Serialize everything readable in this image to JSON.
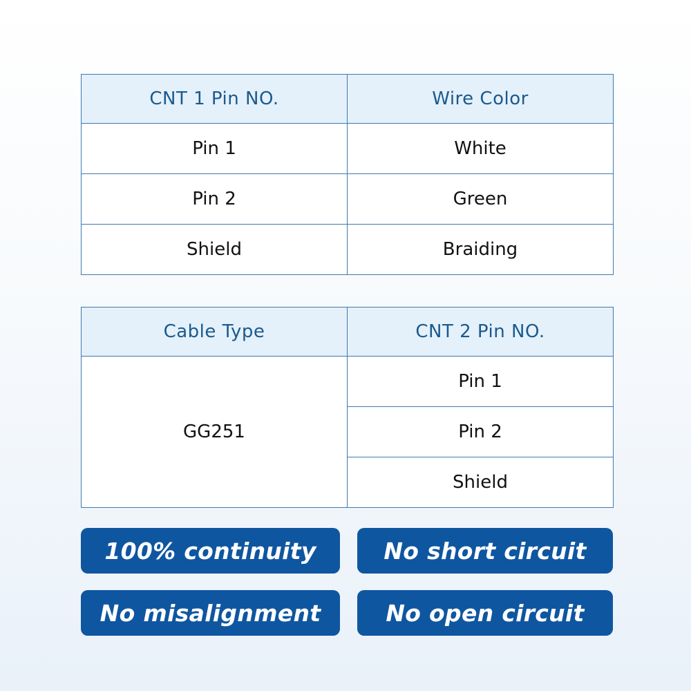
{
  "table1": {
    "headers": [
      "CNT 1 Pin NO.",
      "Wire Color"
    ],
    "rows": [
      [
        "Pin 1",
        "White"
      ],
      [
        "Pin 2",
        "Green"
      ],
      [
        "Shield",
        "Braiding"
      ]
    ]
  },
  "table2": {
    "headers": [
      "Cable Type",
      "CNT 2 Pin NO."
    ],
    "cable_type": "GG251",
    "pins": [
      "Pin 1",
      "Pin 2",
      "Shield"
    ]
  },
  "badges": [
    "100% continuity",
    "No short circuit",
    "No misalignment",
    "No open circuit"
  ],
  "colors": {
    "badge": "#0f56a0",
    "header_bg": "#e4f0fa",
    "header_text": "#1b5a8d",
    "border": "#3f79ae"
  }
}
